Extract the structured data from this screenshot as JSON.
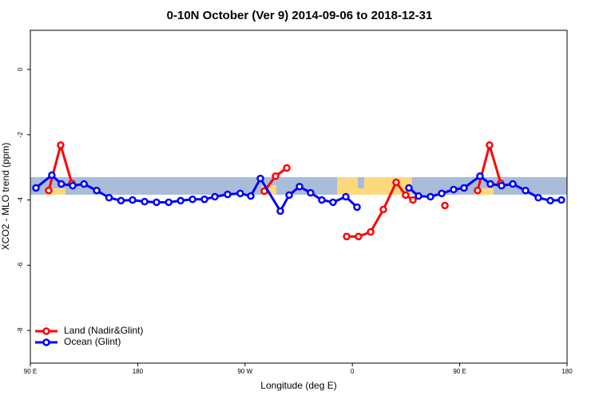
{
  "chart_data": {
    "type": "line",
    "title": "0-10N October (Ver 9)   2014-09-06 to 2018-12-31",
    "x_label": "Longitude (deg E)",
    "y_label": "XCO2 - MLO trend (ppm)",
    "xlim": [
      90,
      540
    ],
    "ylim": [
      -9,
      1.2
    ],
    "xticks": [
      {
        "value": 90,
        "label": "90 E"
      },
      {
        "value": 180,
        "label": "180"
      },
      {
        "value": 270,
        "label": "90 W"
      },
      {
        "value": 360,
        "label": "0"
      },
      {
        "value": 450,
        "label": "90 E"
      },
      {
        "value": 540,
        "label": "180"
      }
    ],
    "yticks": [
      0,
      -2,
      -4,
      -6,
      -8
    ],
    "legend": "bottom-left",
    "series": [
      {
        "name": "Land (Nadir&Glint)",
        "color": "#ff0000",
        "x": [
          105.4,
          115.4,
          124.8,
          null,
          286.2,
          295.6,
          305,
          null,
          355.2,
          365.2,
          375.3,
          386,
          396.7,
          404.7,
          410.8,
          null,
          437.6,
          null,
          465,
          475,
          484.4
        ],
        "values": [
          -3.71,
          -2.32,
          -3.49,
          null,
          -3.73,
          -3.27,
          -3.02,
          null,
          -5.12,
          -5.12,
          -4.98,
          -4.29,
          -3.46,
          -3.85,
          -4.0,
          null,
          -4.17,
          null,
          -3.71,
          -2.32,
          -3.49
        ]
      },
      {
        "name": "Ocean (Glint)",
        "color": "#0000ff",
        "x": [
          94.7,
          108,
          116,
          125.5,
          135,
          145.6,
          156,
          166,
          175.7,
          185.8,
          195.8,
          206,
          216,
          226,
          236,
          244.7,
          255.4,
          266,
          274.8,
          282.9,
          299.6,
          307,
          315.7,
          325,
          334.4,
          343.8,
          354.5,
          363.9,
          null,
          407.4,
          415.5,
          425.5,
          434.9,
          444.9,
          453.6,
          467,
          475.7,
          485.1,
          494.5,
          505.2,
          515.9,
          526,
          535.3
        ],
        "values": [
          -3.63,
          -3.24,
          -3.51,
          -3.56,
          -3.51,
          -3.71,
          -3.93,
          -4.02,
          -4.0,
          -4.05,
          -4.07,
          -4.07,
          -4.02,
          -3.98,
          -3.98,
          -3.9,
          -3.83,
          -3.8,
          -3.88,
          -3.34,
          -4.34,
          -3.85,
          -3.59,
          -3.78,
          -4.0,
          -4.07,
          -3.9,
          -4.22,
          null,
          -3.63,
          -3.88,
          -3.9,
          -3.8,
          -3.68,
          -3.63,
          -3.27,
          -3.51,
          -3.56,
          -3.51,
          -3.71,
          -3.93,
          -4.02,
          -4.0
        ]
      }
    ]
  }
}
